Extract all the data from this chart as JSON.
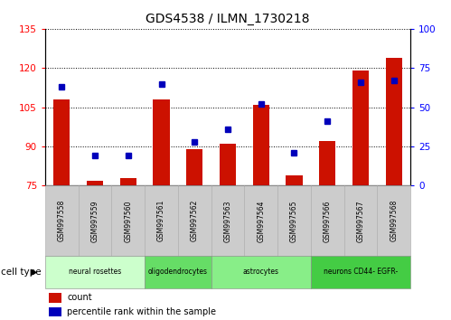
{
  "title": "GDS4538 / ILMN_1730218",
  "samples": [
    "GSM997558",
    "GSM997559",
    "GSM997560",
    "GSM997561",
    "GSM997562",
    "GSM997563",
    "GSM997564",
    "GSM997565",
    "GSM997566",
    "GSM997567",
    "GSM997568"
  ],
  "count_values": [
    108,
    77,
    78,
    108,
    89,
    91,
    106,
    79,
    92,
    119,
    124
  ],
  "percentile_values": [
    63,
    19,
    19,
    65,
    28,
    36,
    52,
    21,
    41,
    66,
    67
  ],
  "ylim_left": [
    75,
    135
  ],
  "ylim_right": [
    0,
    100
  ],
  "yticks_left": [
    75,
    90,
    105,
    120,
    135
  ],
  "yticks_right": [
    0,
    25,
    50,
    75,
    100
  ],
  "groups": [
    {
      "label": "neural rosettes",
      "cols": [
        0,
        1,
        2
      ],
      "color": "#ccffcc"
    },
    {
      "label": "oligodendrocytes",
      "cols": [
        3,
        4
      ],
      "color": "#66dd66"
    },
    {
      "label": "astrocytes",
      "cols": [
        5,
        6,
        7
      ],
      "color": "#88ee88"
    },
    {
      "label": "neurons CD44- EGFR-",
      "cols": [
        8,
        9,
        10
      ],
      "color": "#44cc44"
    }
  ],
  "bar_color": "#cc1100",
  "dot_color": "#0000bb",
  "cell_type_label": "cell type",
  "legend_count": "count",
  "legend_percentile": "percentile rank within the sample"
}
